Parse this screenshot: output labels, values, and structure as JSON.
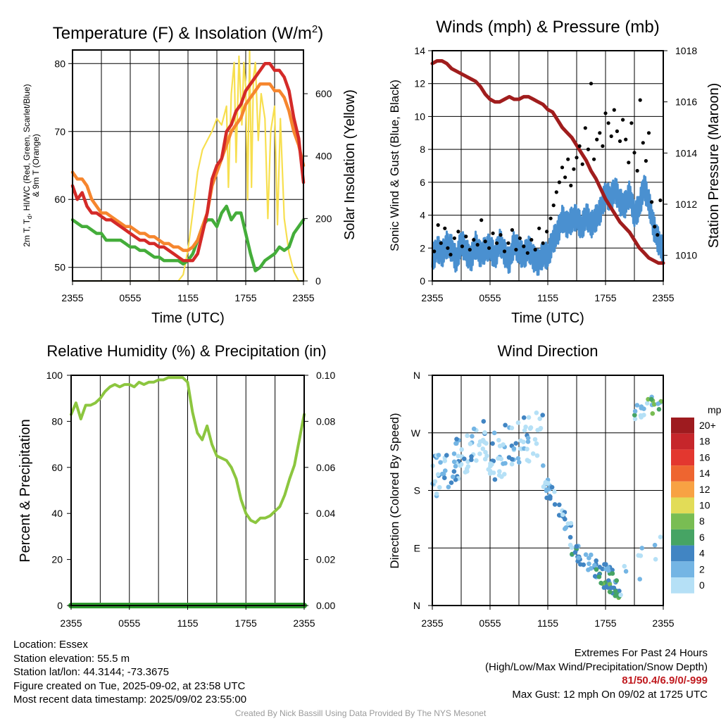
{
  "colors": {
    "temp_red": "#d42a28",
    "dewpoint_green": "#44ad3a",
    "temp9m_orange": "#f6862e",
    "insolation_yellow": "#f7df4f",
    "wind_blue": "#4a90d0",
    "gust_black": "#000000",
    "pressure_maroon": "#a01d1d",
    "rh_green": "#8cc63f",
    "precip_green": "#2e9a2e",
    "extremes_red": "#c01a1f",
    "credit_gray": "#9a9a9a"
  },
  "chart_data": [
    {
      "type": "line",
      "title_main": "Temperature (F) & Insolation (W/m",
      "title_sup": "2",
      "title_close": ")",
      "xlabel": "Time (UTC)",
      "ylabel_lines": [
        "2m T, T",
        "d",
        ", HI/WC (Red, Green, Scarlet/Blue)",
        "& 9m T (Orange)"
      ],
      "y2label": "Solar Insolation (Yellow)",
      "xticks": [
        "2355",
        "0555",
        "1155",
        "1755",
        "2355"
      ],
      "ylim": [
        48,
        82
      ],
      "yticks": [
        50,
        60,
        70,
        80
      ],
      "y2lim": [
        0,
        740
      ],
      "y2ticks": [
        0,
        200,
        400,
        600
      ],
      "series": [
        {
          "key": "red",
          "axis": "left",
          "x": [
            0,
            0.5,
            1,
            1.5,
            2,
            2.5,
            3,
            3.5,
            4,
            4.5,
            5,
            5.5,
            6,
            6.5,
            7,
            7.5,
            8,
            8.5,
            9,
            9.5,
            10,
            10.5,
            11,
            11.5,
            12,
            12.5,
            13,
            13.5,
            14,
            14.5,
            15,
            15.5,
            16,
            16.5,
            17,
            17.5,
            18,
            18.5,
            19,
            19.5,
            20,
            20.5,
            21,
            21.5,
            22,
            22.5,
            23,
            23.5,
            24
          ],
          "y": [
            62,
            60,
            61,
            59,
            58,
            58,
            57.5,
            57,
            57,
            56.5,
            56,
            55.5,
            55,
            54.5,
            54,
            54,
            53.5,
            53.5,
            53,
            53,
            52.5,
            52,
            51.5,
            51,
            51,
            51,
            52,
            55,
            58,
            63,
            65,
            66,
            70,
            71,
            73,
            74,
            76,
            77,
            78,
            79,
            80,
            80,
            79,
            79,
            78,
            76,
            72,
            69,
            62.5
          ]
        },
        {
          "key": "orange",
          "axis": "left",
          "x": [
            0,
            0.5,
            1,
            1.5,
            2,
            2.5,
            3,
            3.5,
            4,
            4.5,
            5,
            5.5,
            6,
            6.5,
            7,
            7.5,
            8,
            8.5,
            9,
            9.5,
            10,
            10.5,
            11,
            11.5,
            12,
            12.5,
            13,
            13.5,
            14,
            14.5,
            15,
            15.5,
            16,
            16.5,
            17,
            17.5,
            18,
            18.5,
            19,
            19.5,
            20,
            20.5,
            21,
            21.5,
            22,
            22.5,
            23,
            23.5,
            24
          ],
          "y": [
            64,
            63,
            63,
            62,
            60,
            59,
            58,
            58,
            57.5,
            57,
            56.5,
            56,
            56,
            55.5,
            55,
            55,
            54.5,
            54.5,
            54,
            53.5,
            53.5,
            53,
            53,
            52.5,
            52.5,
            53,
            54,
            56,
            58,
            62,
            64,
            66,
            68,
            70,
            71,
            72,
            74,
            75,
            76,
            77,
            77,
            77,
            76,
            76,
            75,
            73,
            70,
            68,
            65
          ]
        },
        {
          "key": "green",
          "axis": "left",
          "x": [
            0,
            0.5,
            1,
            1.5,
            2,
            2.5,
            3,
            3.5,
            4,
            4.5,
            5,
            5.5,
            6,
            6.5,
            7,
            7.5,
            8,
            8.5,
            9,
            9.5,
            10,
            10.5,
            11,
            11.5,
            12,
            12.5,
            13,
            13.5,
            14,
            14.5,
            15,
            15.5,
            16,
            16.5,
            17,
            17.5,
            18,
            18.5,
            19,
            19.5,
            20,
            20.5,
            21,
            21.5,
            22,
            22.5,
            23,
            23.5,
            24
          ],
          "y": [
            57,
            56.5,
            56,
            56,
            55.5,
            55,
            55,
            54,
            54,
            54,
            54,
            53.5,
            53,
            53,
            52.5,
            52.5,
            52,
            51.5,
            51.5,
            51,
            51,
            51,
            51,
            50.5,
            51,
            52,
            54,
            56,
            57,
            57,
            56,
            58,
            59,
            57,
            58,
            58,
            55,
            52,
            49.5,
            50,
            51,
            51.5,
            52,
            53,
            52.5,
            53,
            55,
            56,
            57
          ]
        },
        {
          "key": "yellow",
          "axis": "right",
          "x": [
            0,
            1,
            2,
            3,
            4,
            5,
            6,
            7,
            8,
            9,
            10,
            10.5,
            11,
            11.5,
            12,
            12.5,
            13,
            13.5,
            14,
            14.5,
            15,
            15.5,
            16,
            16.2,
            16.5,
            16.8,
            17,
            17.3,
            17.6,
            17.8,
            18,
            18.2,
            18.4,
            18.6,
            18.8,
            19,
            19.3,
            19.6,
            20,
            20.3,
            20.6,
            21,
            21.3,
            21.6,
            22,
            22.5,
            23,
            23.5,
            24
          ],
          "y": [
            0,
            0,
            0,
            0,
            0,
            0,
            0,
            0,
            0,
            0,
            0,
            0,
            0,
            20,
            100,
            220,
            350,
            420,
            450,
            480,
            520,
            500,
            560,
            300,
            600,
            700,
            380,
            720,
            500,
            700,
            620,
            260,
            740,
            300,
            650,
            700,
            450,
            600,
            520,
            200,
            480,
            560,
            180,
            520,
            200,
            90,
            30,
            0,
            0
          ]
        }
      ]
    },
    {
      "type": "line",
      "title": "Winds (mph) & Pressure (mb)",
      "xlabel": "Time (UTC)",
      "ylabel": "Sonic Wind & Gust (Blue, Black)",
      "y2label": "Station Pressure (Maroon)",
      "xticks": [
        "2355",
        "0555",
        "1155",
        "1755",
        "2355"
      ],
      "ylim": [
        0,
        14
      ],
      "yticks": [
        0,
        2,
        4,
        6,
        8,
        10,
        12,
        14
      ],
      "y2lim": [
        1009,
        1018
      ],
      "y2ticks": [
        1010,
        1012,
        1014,
        1016,
        1018
      ],
      "series": [
        {
          "key": "pressure",
          "axis": "right",
          "x": [
            0,
            0.5,
            1,
            1.5,
            2,
            2.5,
            3,
            3.5,
            4,
            4.5,
            5,
            5.5,
            6,
            6.5,
            7,
            7.5,
            8,
            8.5,
            9,
            9.5,
            10,
            10.5,
            11,
            11.5,
            12,
            12.5,
            13,
            13.5,
            14,
            14.5,
            15,
            15.5,
            16,
            16.5,
            17,
            17.5,
            18,
            18.5,
            19,
            19.5,
            20,
            20.5,
            21,
            21.5,
            22,
            22.5,
            23,
            23.5,
            24
          ],
          "y": [
            1017.5,
            1017.6,
            1017.6,
            1017.5,
            1017.3,
            1017.2,
            1017.1,
            1017.0,
            1016.9,
            1016.8,
            1016.6,
            1016.3,
            1016.1,
            1016.0,
            1016.0,
            1016.1,
            1016.2,
            1016.1,
            1016.1,
            1016.2,
            1016.2,
            1016.1,
            1016.0,
            1015.9,
            1015.7,
            1015.6,
            1015.3,
            1015.0,
            1014.8,
            1014.6,
            1014.3,
            1014.0,
            1013.7,
            1013.3,
            1013.0,
            1012.6,
            1012.2,
            1011.9,
            1011.6,
            1011.3,
            1011.1,
            1010.9,
            1010.6,
            1010.3,
            1010.1,
            1009.9,
            1009.8,
            1009.7,
            1009.7
          ]
        },
        {
          "key": "wind_blue",
          "axis": "left",
          "x": [
            0,
            0.5,
            1,
            1.5,
            2,
            2.5,
            3,
            3.5,
            4,
            4.5,
            5,
            5.5,
            6,
            6.5,
            7,
            7.5,
            8,
            8.5,
            9,
            9.5,
            10,
            10.5,
            11,
            11.5,
            12,
            12.5,
            13,
            13.5,
            14,
            14.5,
            15,
            15.5,
            16,
            16.5,
            17,
            17.5,
            18,
            18.5,
            19,
            19.5,
            20,
            20.5,
            21,
            21.5,
            22,
            22.5,
            23,
            23.5,
            24
          ],
          "y": [
            1.3,
            2.0,
            1.6,
            2.2,
            2.0,
            1.2,
            2.4,
            1.8,
            1.3,
            2.2,
            1.6,
            1.9,
            2.1,
            1.4,
            2.4,
            1.7,
            1.2,
            2.3,
            1.8,
            1.5,
            2.0,
            1.4,
            1.1,
            1.6,
            1.5,
            2.4,
            2.9,
            3.8,
            3.4,
            3.7,
            3.9,
            3.2,
            4.0,
            3.4,
            3.8,
            4.3,
            5.3,
            5.0,
            5.6,
            4.8,
            4.6,
            5.3,
            4.0,
            4.5,
            5.8,
            4.8,
            3.3,
            2.4,
            1.8
          ]
        },
        {
          "key": "gust_black",
          "axis": "left",
          "x": [
            0.2,
            0.6,
            0.9,
            1.3,
            1.6,
            1.9,
            2.3,
            2.7,
            3.1,
            3.5,
            3.9,
            4.3,
            4.7,
            5.1,
            5.5,
            5.9,
            6.3,
            6.7,
            7.1,
            7.5,
            7.9,
            8.3,
            8.7,
            9.1,
            9.5,
            9.9,
            10.3,
            10.7,
            11.1,
            11.5,
            11.9,
            12.3,
            12.6,
            12.9,
            13.2,
            13.5,
            13.8,
            14.1,
            14.4,
            14.7,
            15.0,
            15.3,
            15.6,
            15.9,
            16.2,
            16.5,
            16.8,
            17.1,
            17.4,
            17.7,
            18.0,
            18.3,
            18.6,
            18.9,
            19.2,
            19.5,
            19.8,
            20.1,
            20.4,
            20.7,
            21.0,
            21.3,
            21.6,
            21.9,
            22.2,
            22.5,
            22.8,
            23.1,
            23.4,
            23.7
          ],
          "y": [
            1.8,
            3.4,
            2.3,
            3.2,
            2.0,
            1.6,
            2.6,
            3.0,
            2.1,
            2.7,
            1.9,
            2.5,
            2.2,
            3.7,
            2.4,
            2.0,
            2.9,
            2.3,
            2.8,
            1.8,
            2.3,
            3.1,
            1.9,
            2.6,
            2.1,
            1.7,
            2.5,
            1.9,
            3.2,
            2.3,
            3.0,
            3.8,
            4.6,
            5.4,
            6.0,
            6.9,
            6.3,
            7.4,
            5.8,
            6.8,
            7.5,
            8.2,
            7.1,
            9.3,
            8.0,
            12.0,
            7.4,
            8.6,
            9.0,
            8.2,
            10.2,
            9.6,
            8.8,
            10.4,
            9.1,
            8.5,
            9.8,
            8.6,
            7.2,
            9.6,
            7.8,
            6.7,
            11.0,
            8.4,
            7.3,
            9.0,
            4.8,
            3.3,
            2.8,
            4.9
          ]
        }
      ]
    },
    {
      "type": "line",
      "title": "Relative Humidity (%) & Precipitation (in)",
      "ylabel": "Percent & Precipitation",
      "xticks": [
        "2355",
        "0555",
        "1155",
        "1755",
        "2355"
      ],
      "ylim": [
        0,
        100
      ],
      "yticks": [
        0,
        20,
        40,
        60,
        80,
        100
      ],
      "y2lim": [
        0,
        0.1
      ],
      "y2ticks": [
        "0.00",
        "0.02",
        "0.04",
        "0.06",
        "0.08",
        "0.10"
      ],
      "series": [
        {
          "key": "rh",
          "axis": "left",
          "x": [
            0,
            0.5,
            1,
            1.5,
            2,
            2.5,
            3,
            3.5,
            4,
            4.5,
            5,
            5.5,
            6,
            6.5,
            7,
            7.5,
            8,
            8.5,
            9,
            9.5,
            10,
            10.5,
            11,
            11.5,
            12,
            12.5,
            13,
            13.5,
            14,
            14.5,
            15,
            15.5,
            16,
            16.5,
            17,
            17.5,
            18,
            18.5,
            19,
            19.5,
            20,
            20.5,
            21,
            21.5,
            22,
            22.5,
            23,
            23.5,
            24
          ],
          "y": [
            83,
            88,
            81,
            87,
            87,
            88,
            90,
            93,
            95,
            96,
            95,
            96,
            96,
            95,
            97,
            96,
            97,
            97,
            98,
            98,
            99,
            99,
            99,
            99,
            97,
            84,
            75,
            72,
            78,
            70,
            65,
            64,
            63,
            60,
            55,
            46,
            40,
            37,
            36,
            38,
            38,
            39,
            41,
            43,
            48,
            55,
            61,
            72,
            83
          ]
        },
        {
          "key": "precip",
          "axis": "right",
          "x": [
            0,
            24
          ],
          "y": [
            0,
            0
          ]
        }
      ]
    },
    {
      "type": "scatter",
      "title": "Wind Direction",
      "ylabel": "Direction (Colored By Speed)",
      "xticks": [
        "2355",
        "0555",
        "1155",
        "1755",
        "2355"
      ],
      "yticks": [
        "N",
        "E",
        "S",
        "W",
        "N"
      ],
      "ylim": [
        0,
        360
      ],
      "legend": {
        "title": "mph",
        "labels": [
          "20+",
          "18",
          "16",
          "14",
          "12",
          "10",
          "8",
          "6",
          "4",
          "2",
          "0"
        ],
        "colors": [
          "#9e1b1f",
          "#c6262b",
          "#e3372f",
          "#ee6530",
          "#f8a243",
          "#e2dc57",
          "#79bd53",
          "#46a464",
          "#4185c3",
          "#74b5e4",
          "#b5e0f6"
        ]
      }
    }
  ],
  "footer": {
    "location": "Location: Essex",
    "elevation": "Station elevation: 55.5 m",
    "latlon": "Station lat/lon: 44.3144; -73.3675",
    "created": "Figure created on Tue, 2025-09-02, at 23:58 UTC",
    "recent": "Most recent data timestamp: 2025/09/02 23:55:00",
    "extremes_title": "Extremes For Past 24 Hours",
    "extremes_desc": "(High/Low/Max Wind/Precipitation/Snow Depth)",
    "extremes_values": "81/50.4/6.9/0/-999",
    "max_gust": "Max Gust: 12 mph On 09/02 at 1725 UTC",
    "credit": "Created By Nick Bassill Using Data Provided By The NYS Mesonet"
  }
}
